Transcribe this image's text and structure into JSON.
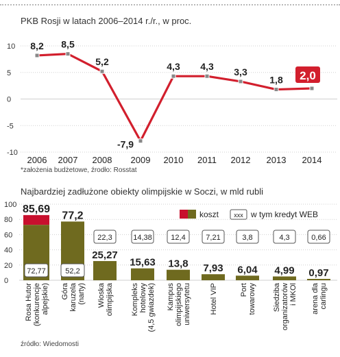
{
  "chart_data": [
    {
      "type": "line",
      "title": "PKB Rosji w latach 2006–2014 r./r., w proc.",
      "categories": [
        "2006",
        "2007",
        "2008",
        "2009",
        "2010",
        "2011",
        "2012",
        "2013",
        "2014"
      ],
      "values": [
        8.2,
        8.5,
        5.2,
        -7.9,
        4.3,
        4.3,
        3.3,
        1.8,
        2.0
      ],
      "labels": [
        "8,2",
        "8,5",
        "5,2",
        "-7,9",
        "4,3",
        "4,3",
        "3,3",
        "1,8",
        "2,0"
      ],
      "ylim": [
        -10,
        10
      ],
      "yticks": [
        "10",
        "5",
        "0",
        "-5",
        "-10"
      ],
      "grid": true,
      "note": "*założenia budżetowe, źrodło: Rosstat",
      "colors": {
        "line": "#d21f2d",
        "marker": "#888888",
        "highlight": "#d21f2d",
        "grid": "#cfcfcf"
      }
    },
    {
      "type": "bar",
      "title": "Najbardziej zadłużone obiekty olimpijskie w Soczi, w mld rubli",
      "categories": [
        "Rosa Hutor (konkurencje alpejskie)",
        "Góra karuzela (narty)",
        "Wioska olimpijska",
        "Kompleks hotelowy (4,5 gwiazdek)",
        "Kampus olimpijskiego uniwersytetu",
        "Hotel VIP",
        "Port towarowy",
        "Siedziba organizatorów i MKOl",
        "arena dla carlingu"
      ],
      "category_lines": [
        [
          "Rosa Hutor",
          "(konkurencje",
          "alpejskie)"
        ],
        [
          "Góra",
          "karuzela",
          "(narty)"
        ],
        [
          "Wioska",
          "olimpijska"
        ],
        [
          "Kompleks",
          "hotelowy",
          "(4,5 gwiazdek)"
        ],
        [
          "Kampus",
          "olimpijskiego",
          "uniwersytetu"
        ],
        [
          "Hotel VIP"
        ],
        [
          "Port",
          "towarowy"
        ],
        [
          "Siedziba",
          "organizatorów",
          "i MKOl"
        ],
        [
          "arena dla",
          "carlingu"
        ]
      ],
      "series": [
        {
          "name": "koszt",
          "values": [
            85.69,
            77.2,
            25.27,
            15.63,
            13.8,
            7.93,
            6.04,
            4.99,
            0.97
          ],
          "labels": [
            "85,69",
            "77,2",
            "25,27",
            "15,63",
            "13,8",
            "7,93",
            "6,04",
            "4,99",
            "0,97"
          ]
        },
        {
          "name": "w tym kredyt WEB",
          "values": [
            72.77,
            52.2,
            22.3,
            14.38,
            12.4,
            7.21,
            3.8,
            4.3,
            0.66
          ],
          "labels": [
            "72,77",
            "52,2",
            "22,3",
            "14,38",
            "12,4",
            "7,21",
            "3,8",
            "4,3",
            "0,66"
          ]
        }
      ],
      "highlight_index": 0,
      "ylim": [
        0,
        100
      ],
      "yticks": [
        "100",
        "80",
        "60",
        "40",
        "20",
        "0"
      ],
      "legend": {
        "position": "top-right",
        "swatch_sample": "xxx",
        "cost_label": "koszt",
        "credit_label": "w tym kredyt WEB"
      },
      "note": "źródło: Wiedomosti",
      "colors": {
        "cost": "#6f6a1f",
        "highlight": "#c8102e",
        "box_border": "#555555",
        "grid": "#cfcfcf"
      }
    }
  ]
}
